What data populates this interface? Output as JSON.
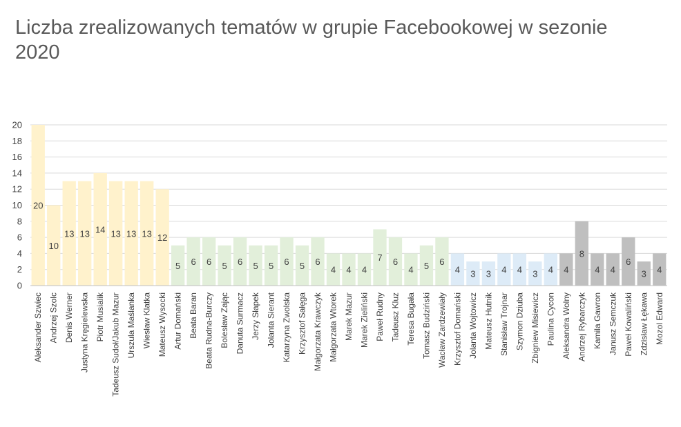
{
  "chart_data": {
    "type": "bar",
    "title": "Liczba zrealizowanych tematów w grupie Facebookowej w sezonie 2020",
    "xlabel": "",
    "ylabel": "",
    "ylim": [
      0,
      20
    ],
    "yticks": [
      0,
      2,
      4,
      6,
      8,
      10,
      12,
      14,
      16,
      18,
      20
    ],
    "grid": true,
    "legend": "none",
    "categories": [
      "Aleksander Szwiec",
      "Andrzej Szolc",
      "Denis Werner",
      "Justyna Kręgielewska",
      "Piotr Musialik",
      "Tadeusz Sudoł/Jakub Mazur",
      "Urszula Maślanka",
      "Wiesław Klatka",
      "Mateusz Wysocki",
      "Artur Domański",
      "Beata Baran",
      "Beata Rudna-Burczy",
      "Bolesław Zając",
      "Danuta Surmacz",
      "Jerzy Słapek",
      "Jolanta Sierant",
      "Katarzyna Zwolska",
      "Krzysztof Sałęga",
      "Małgorzata Krawczyk",
      "Małgorzata Wtorek",
      "Marek Mazur",
      "Marek Zieliński",
      "Paweł Rudny",
      "Tadeusz Kluz",
      "Teresa Bugała",
      "Tomasz Budziński",
      "Wacław Zardzewiały",
      "Krzysztof Domański",
      "Jolanta Wojtowicz",
      "Mateusz Hutnik",
      "Stanisław Trojnar",
      "Szymon Dziuba",
      "Zbigniew Misiewicz",
      "Paulina Cycon",
      "Aleksandra Wolny",
      "Andrzej Rybarczyk",
      "Kamila Gawron",
      "Janusz Semczuk",
      "Paweł Kowaliński",
      "Zdzisław Łękawa",
      "Mozol Edward"
    ],
    "values": [
      20,
      10,
      13,
      13,
      14,
      13,
      13,
      13,
      12,
      5,
      6,
      6,
      5,
      6,
      5,
      5,
      6,
      5,
      6,
      4,
      4,
      4,
      7,
      6,
      4,
      5,
      6,
      4,
      3,
      3,
      4,
      4,
      3,
      4,
      4,
      8,
      4,
      4,
      6,
      3,
      4
    ],
    "groups": [
      {
        "start": 0,
        "end": 8,
        "color": "#FFF2CC"
      },
      {
        "start": 9,
        "end": 26,
        "color": "#E2EFDA"
      },
      {
        "start": 27,
        "end": 33,
        "color": "#DDEBF7"
      },
      {
        "start": 34,
        "end": 40,
        "color": "#BFBFBF"
      }
    ],
    "gridline_color": "#D9D9D9",
    "text_color": "#404040"
  }
}
